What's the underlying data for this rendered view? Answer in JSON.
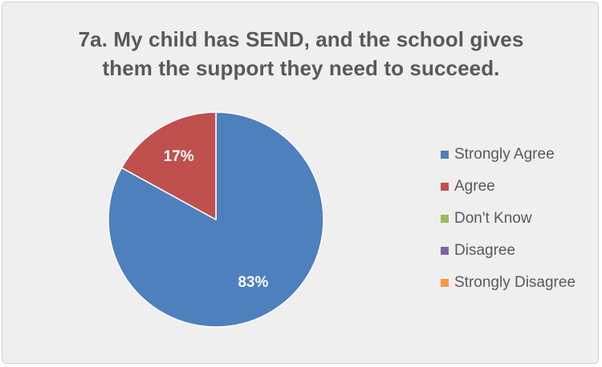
{
  "chart_data": {
    "type": "pie",
    "title_lines": [
      "7a. My child has SEND, and the school gives",
      "them the support they need to succeed."
    ],
    "slices": [
      {
        "label": "Strongly Agree",
        "value": 83,
        "display": "83%",
        "color": "#4e80bd"
      },
      {
        "label": "Agree",
        "value": 17,
        "display": "17%",
        "color": "#c0504d"
      },
      {
        "label": "Don't Know",
        "value": 0,
        "display": "",
        "color": "#9bbb59"
      },
      {
        "label": "Disagree",
        "value": 0,
        "display": "",
        "color": "#8064a2"
      },
      {
        "label": "Strongly Disagree",
        "value": 0,
        "display": "",
        "color": "#f79646"
      }
    ],
    "legend_position": "right"
  }
}
